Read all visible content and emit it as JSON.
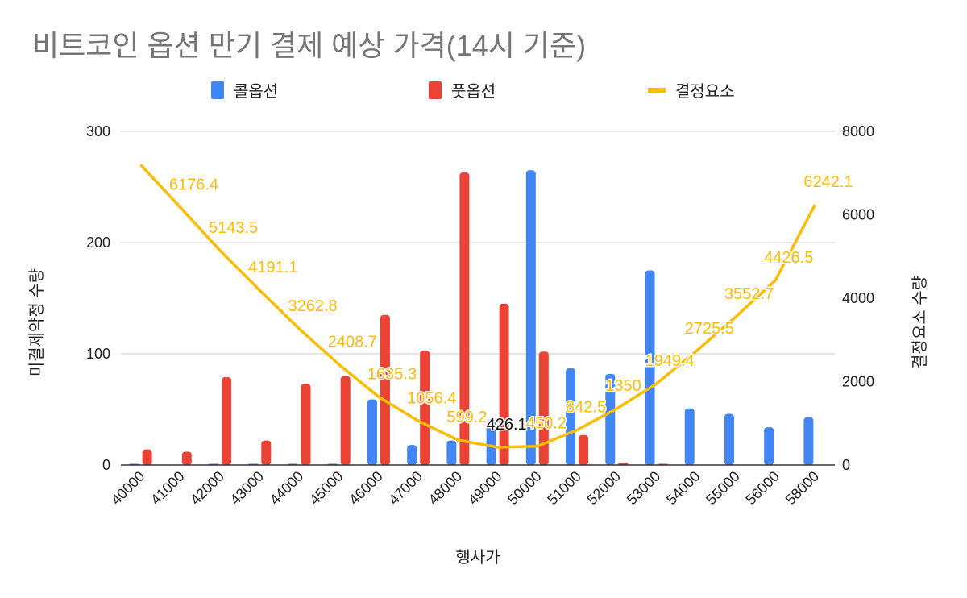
{
  "chart_data": {
    "type": "bar",
    "title": "비트코인 옵션 만기 결제 예상 가격(14시 기준)",
    "xlabel": "행사가",
    "ylabel": "미결제약정 수량",
    "y2label": "결정요소 수량",
    "ylim": [
      0,
      300
    ],
    "y2lim": [
      0,
      8000
    ],
    "yticks": [
      0,
      100,
      200,
      300
    ],
    "y2ticks": [
      0,
      2000,
      4000,
      6000,
      8000
    ],
    "grid": true,
    "legend_position": "top",
    "categories": [
      "40000",
      "41000",
      "42000",
      "43000",
      "44000",
      "45000",
      "46000",
      "47000",
      "48000",
      "49000",
      "50000",
      "51000",
      "52000",
      "53000",
      "54000",
      "55000",
      "56000",
      "58000"
    ],
    "series": [
      {
        "name": "콜옵션",
        "kind": "bar",
        "axis": "left",
        "color": "#4285f4",
        "values": [
          0.5,
          0,
          1,
          1,
          1,
          1,
          59,
          18,
          22,
          40,
          265,
          87,
          82,
          175,
          51,
          46,
          34,
          43
        ]
      },
      {
        "name": "풋옵션",
        "kind": "bar",
        "axis": "left",
        "color": "#ea4335",
        "values": [
          14,
          12,
          79,
          22,
          73,
          80,
          135,
          103,
          263,
          145,
          102,
          27,
          2,
          0.5,
          0,
          0,
          0,
          0
        ]
      },
      {
        "name": "결정요소",
        "kind": "line",
        "axis": "right",
        "color": "#fbbc04",
        "values": [
          7200,
          6176.4,
          5143.5,
          4191.1,
          3262.8,
          2408.7,
          1635.3,
          1056.4,
          599.2,
          426.1,
          450.2,
          842.5,
          1350,
          1949.4,
          2725.5,
          3552.7,
          4426.5,
          6242.1
        ],
        "labels": [
          "",
          "6176.4",
          "5143.5",
          "4191.1",
          "3262.8",
          "2408.7",
          "1635.3",
          "1056.4",
          "599.2",
          "426.1",
          "450.2",
          "842.5",
          "1350",
          "1949.4",
          "2725.5",
          "3552.7",
          "4426.5",
          "6242.1"
        ]
      }
    ]
  }
}
